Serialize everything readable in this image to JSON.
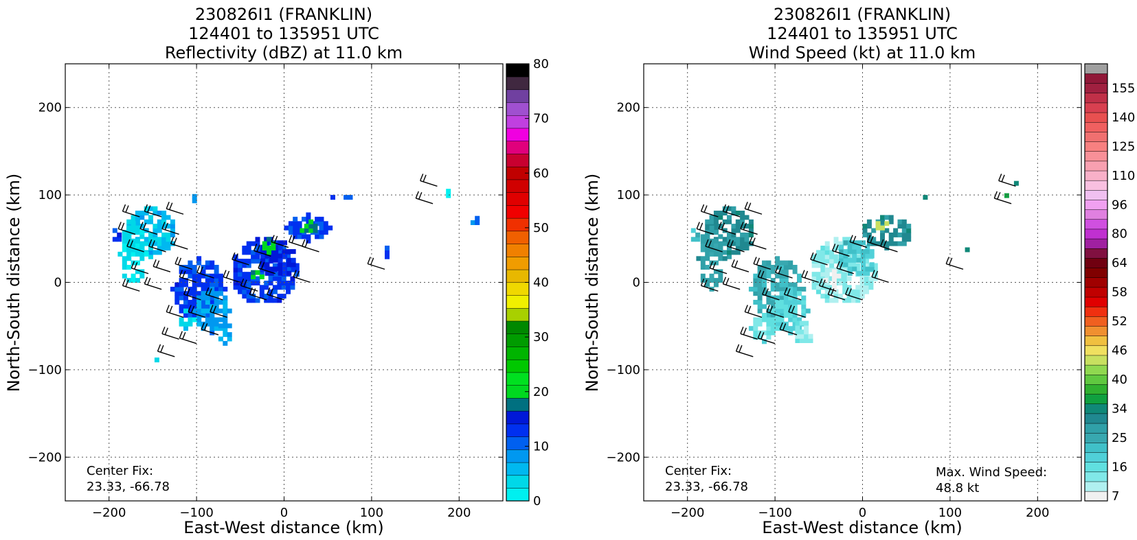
{
  "chart_data": [
    {
      "type": "heatmap",
      "title": [
        "230826I1 (FRANKLIN)",
        "124401 to 135951 UTC",
        "Reflectivity (dBZ) at 11.0 km"
      ],
      "xlabel": "East-West distance (km)",
      "ylabel": "North-South distance (km)",
      "xlim": [
        -250,
        250
      ],
      "ylim": [
        -250,
        250
      ],
      "xticks": [
        -200,
        -100,
        0,
        100,
        200
      ],
      "yticks": [
        -200,
        -100,
        0,
        100,
        200
      ],
      "grid": true,
      "annotations": [
        {
          "lines": [
            "Center Fix:",
            "23.33, -66.78"
          ],
          "position": "bottom-left"
        }
      ],
      "colorbar": {
        "min": 0,
        "max": 80,
        "step": 2.5,
        "ticks": [
          0,
          10,
          20,
          30,
          40,
          50,
          60,
          70,
          80
        ],
        "colors": [
          "#00f0f0",
          "#00d8e8",
          "#00b8f0",
          "#0098f0",
          "#0060f0",
          "#0030f0",
          "#0018d8",
          "#007080",
          "#00d820",
          "#00e020",
          "#00c800",
          "#00b400",
          "#009c00",
          "#008800",
          "#a8d000",
          "#f0f000",
          "#f0d800",
          "#e8b800",
          "#f09c00",
          "#f08000",
          "#f06000",
          "#f03000",
          "#f00000",
          "#e00000",
          "#d00000",
          "#c00000",
          "#c80030",
          "#e0007c",
          "#f000e0",
          "#c040e0",
          "#a050d0",
          "#7040a0",
          "#402840",
          "#000000"
        ]
      },
      "regions": [
        {
          "cx": -155,
          "cy": 55,
          "rx": 30,
          "ry": 28,
          "level": 2
        },
        {
          "cx": -175,
          "cy": 30,
          "rx": 15,
          "ry": 35,
          "level": 1
        },
        {
          "cx": -195,
          "cy": 50,
          "rx": 6,
          "ry": 8,
          "level": 5
        },
        {
          "cx": -105,
          "cy": 95,
          "rx": 5,
          "ry": 4,
          "level": 4
        },
        {
          "cx": -100,
          "cy": -10,
          "rx": 30,
          "ry": 35,
          "level": 5
        },
        {
          "cx": -85,
          "cy": -35,
          "rx": 20,
          "ry": 25,
          "level": 3
        },
        {
          "cx": -115,
          "cy": -45,
          "rx": 10,
          "ry": 10,
          "level": 1
        },
        {
          "cx": -70,
          "cy": -60,
          "rx": 10,
          "ry": 12,
          "level": 3
        },
        {
          "cx": -25,
          "cy": 10,
          "rx": 38,
          "ry": 38,
          "level": 5
        },
        {
          "cx": -10,
          "cy": 25,
          "rx": 22,
          "ry": 22,
          "level": 6
        },
        {
          "cx": -20,
          "cy": 40,
          "rx": 10,
          "ry": 8,
          "level": 8
        },
        {
          "cx": -35,
          "cy": 5,
          "rx": 8,
          "ry": 6,
          "level": 8
        },
        {
          "cx": 25,
          "cy": 60,
          "rx": 25,
          "ry": 15,
          "level": 5
        },
        {
          "cx": 25,
          "cy": 60,
          "rx": 12,
          "ry": 8,
          "level": 8
        },
        {
          "cx": 65,
          "cy": 95,
          "rx": 12,
          "ry": 5,
          "level": 5
        },
        {
          "cx": 115,
          "cy": 33,
          "rx": 5,
          "ry": 6,
          "level": 5
        },
        {
          "cx": 214,
          "cy": 67,
          "rx": 6,
          "ry": 6,
          "level": 4
        },
        {
          "cx": -150,
          "cy": -93,
          "rx": 3,
          "ry": 3,
          "level": 1
        },
        {
          "cx": 185,
          "cy": 100,
          "rx": 5,
          "ry": 3,
          "level": 0
        }
      ]
    },
    {
      "type": "heatmap",
      "title": [
        "230826I1 (FRANKLIN)",
        "124401 to 135951 UTC",
        "Wind Speed (kt) at 11.0 km"
      ],
      "xlabel": "East-West distance (km)",
      "ylabel": "North-South distance (km)",
      "xlim": [
        -250,
        250
      ],
      "ylim": [
        -250,
        250
      ],
      "xticks": [
        -200,
        -100,
        0,
        100,
        200
      ],
      "yticks": [
        -200,
        -100,
        0,
        100,
        200
      ],
      "grid": true,
      "annotations": [
        {
          "lines": [
            "Center Fix:",
            "23.33, -66.78"
          ],
          "position": "bottom-left"
        },
        {
          "lines": [
            "Max. Wind Speed:",
            "48.8 kt"
          ],
          "position": "bottom-right"
        }
      ],
      "colorbar": {
        "ticks": [
          "7",
          "16",
          "25",
          "34",
          "40",
          "46",
          "52",
          "58",
          "64",
          "80",
          "96",
          "110",
          "125",
          "140",
          "155"
        ],
        "colors": [
          "#f0f0f0",
          "#b0f0f0",
          "#80e8e8",
          "#60e0e0",
          "#50d0d8",
          "#40c0c8",
          "#38a8b0",
          "#30a0a8",
          "#208890",
          "#108878",
          "#10a040",
          "#30b030",
          "#60c840",
          "#90d850",
          "#c8e060",
          "#f0e060",
          "#f0c040",
          "#f09030",
          "#f06020",
          "#f03010",
          "#e00000",
          "#c00000",
          "#a00000",
          "#800000",
          "#700010",
          "#801040",
          "#a020a0",
          "#c030d0",
          "#d050e0",
          "#e080e0",
          "#f0a0f0",
          "#f0c0f0",
          "#f8c0e0",
          "#f8b0c8",
          "#f8a0b0",
          "#f89098",
          "#f88080",
          "#f07070",
          "#f06060",
          "#e85050",
          "#d84050",
          "#c03048",
          "#a02040",
          "#901838",
          "#a0a0a0"
        ]
      },
      "max_wind_speed": "48.8 kt",
      "regions": [
        {
          "cx": -155,
          "cy": 55,
          "rx": 30,
          "ry": 28,
          "level": 8
        },
        {
          "cx": -175,
          "cy": 25,
          "rx": 15,
          "ry": 35,
          "level": 7
        },
        {
          "cx": -195,
          "cy": 50,
          "rx": 6,
          "ry": 8,
          "level": 5
        },
        {
          "cx": -100,
          "cy": -10,
          "rx": 30,
          "ry": 35,
          "level": 6
        },
        {
          "cx": -85,
          "cy": -35,
          "rx": 20,
          "ry": 25,
          "level": 4
        },
        {
          "cx": -115,
          "cy": -55,
          "rx": 15,
          "ry": 15,
          "level": 3
        },
        {
          "cx": -70,
          "cy": -60,
          "rx": 12,
          "ry": 14,
          "level": 2
        },
        {
          "cx": -25,
          "cy": 10,
          "rx": 38,
          "ry": 38,
          "level": 2
        },
        {
          "cx": -10,
          "cy": 25,
          "rx": 22,
          "ry": 22,
          "level": 5
        },
        {
          "cx": -35,
          "cy": 0,
          "rx": 10,
          "ry": 10,
          "level": 0
        },
        {
          "cx": 25,
          "cy": 55,
          "rx": 30,
          "ry": 18,
          "level": 8
        },
        {
          "cx": 20,
          "cy": 62,
          "rx": 10,
          "ry": 7,
          "level": 14
        },
        {
          "cx": 65,
          "cy": 93,
          "rx": 6,
          "ry": 3,
          "level": 9
        },
        {
          "cx": 115,
          "cy": 33,
          "rx": 3,
          "ry": 3,
          "level": 9
        },
        {
          "cx": 172,
          "cy": 110,
          "rx": 4,
          "ry": 4,
          "level": 9
        },
        {
          "cx": 160,
          "cy": 95,
          "rx": 3,
          "ry": 3,
          "level": 10
        }
      ]
    }
  ],
  "wind_barbs": [
    [
      -165,
      75
    ],
    [
      -140,
      75
    ],
    [
      -115,
      78
    ],
    [
      -170,
      55
    ],
    [
      -145,
      55
    ],
    [
      -120,
      55
    ],
    [
      -160,
      35
    ],
    [
      -135,
      35
    ],
    [
      -110,
      38
    ],
    [
      -155,
      10
    ],
    [
      -130,
      12
    ],
    [
      -105,
      15
    ],
    [
      -165,
      -10
    ],
    [
      -140,
      -8
    ],
    [
      -100,
      0
    ],
    [
      -80,
      5
    ],
    [
      -95,
      -20
    ],
    [
      -70,
      -20
    ],
    [
      -115,
      -40
    ],
    [
      -90,
      -40
    ],
    [
      -65,
      -40
    ],
    [
      -120,
      -65
    ],
    [
      -100,
      -70
    ],
    [
      -75,
      -60
    ],
    [
      -125,
      -85
    ],
    [
      -50,
      0
    ],
    [
      -30,
      -10
    ],
    [
      -10,
      10
    ],
    [
      -40,
      20
    ],
    [
      -15,
      30
    ],
    [
      5,
      40
    ],
    [
      25,
      40
    ],
    [
      40,
      35
    ],
    [
      -20,
      -20
    ],
    [
      0,
      -20
    ],
    [
      30,
      0
    ],
    [
      115,
      15
    ],
    [
      170,
      90
    ],
    [
      175,
      110
    ]
  ]
}
